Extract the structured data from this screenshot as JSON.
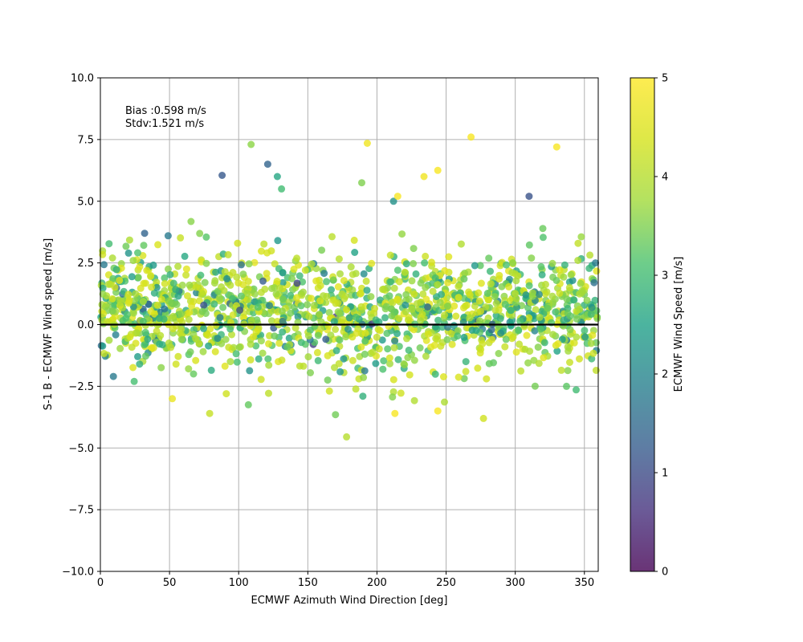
{
  "chart_data": {
    "type": "scatter",
    "title": "",
    "xlabel": "ECMWF Azimuth Wind Direction [deg]",
    "ylabel": "S-1 B - ECMWF Wind speed [m/s]",
    "xlim": [
      0,
      360
    ],
    "ylim": [
      -10.0,
      10.0
    ],
    "xticks": [
      "0",
      "50",
      "100",
      "150",
      "200",
      "250",
      "300",
      "350"
    ],
    "yticks": [
      "−10.0",
      "−7.5",
      "−5.0",
      "−2.5",
      "0.0",
      "2.5",
      "5.0",
      "7.5",
      "10.0"
    ],
    "grid": true,
    "zero_line": 0,
    "annotation": [
      "Bias :0.598 m/s",
      "Stdv:1.521 m/s"
    ],
    "colorbar": {
      "label": "ECMWF Wind Speed [m/s]",
      "range": [
        0,
        5
      ],
      "ticks": [
        "0",
        "1",
        "2",
        "3",
        "4",
        "5"
      ],
      "colormap": "viridis"
    },
    "point_count_approx": 1500,
    "highlighted_points": [
      {
        "x": 88,
        "y": 6.05,
        "c": 1.2
      },
      {
        "x": 109,
        "y": 7.3,
        "c": 3.6
      },
      {
        "x": 121,
        "y": 6.5,
        "c": 1.4
      },
      {
        "x": 128,
        "y": 6.0,
        "c": 2.6
      },
      {
        "x": 131,
        "y": 5.5,
        "c": 3.0
      },
      {
        "x": 193,
        "y": 7.35,
        "c": 4.8
      },
      {
        "x": 268,
        "y": 7.6,
        "c": 4.9
      },
      {
        "x": 330,
        "y": 7.2,
        "c": 4.9
      },
      {
        "x": 310,
        "y": 5.2,
        "c": 1.1
      },
      {
        "x": 244,
        "y": 6.25,
        "c": 4.9
      },
      {
        "x": 234,
        "y": 6.0,
        "c": 4.8
      },
      {
        "x": 189,
        "y": 5.75,
        "c": 3.5
      },
      {
        "x": 212,
        "y": 5.0,
        "c": 2.2
      },
      {
        "x": 215,
        "y": 5.2,
        "c": 4.9
      },
      {
        "x": 178,
        "y": -4.55,
        "c": 4.0
      },
      {
        "x": 277,
        "y": -3.8,
        "c": 4.3
      },
      {
        "x": 213,
        "y": -3.6,
        "c": 4.9
      },
      {
        "x": 170,
        "y": -3.65,
        "c": 3.4
      },
      {
        "x": 79,
        "y": -3.6,
        "c": 4.2
      },
      {
        "x": 107,
        "y": -3.25,
        "c": 3.3
      },
      {
        "x": 244,
        "y": -3.5,
        "c": 4.9
      },
      {
        "x": 52,
        "y": -3.0,
        "c": 4.7
      },
      {
        "x": 32,
        "y": 3.7,
        "c": 1.4
      },
      {
        "x": 49,
        "y": 3.6,
        "c": 1.8
      },
      {
        "x": 358,
        "y": 2.5,
        "c": 1.8
      },
      {
        "x": 357,
        "y": 1.7,
        "c": 1.6
      }
    ],
    "distribution_note": "Points spread across 0-360 deg; most y values between about -2.5 and 2.5; color by ECMWF wind speed 0-5 m/s"
  },
  "colors": {
    "zero_line": "#000000",
    "grid": "#b0b0b0",
    "marker_alpha": 0.8
  }
}
